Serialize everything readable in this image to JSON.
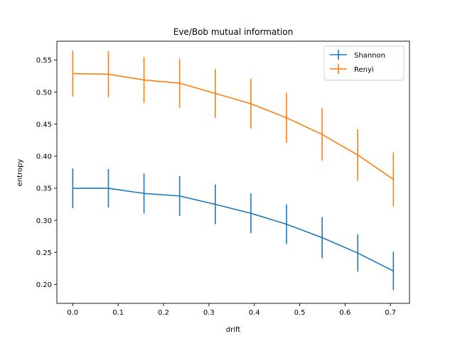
{
  "chart_data": {
    "type": "line",
    "title": "Eve/Bob mutual information",
    "xlabel": "drift",
    "ylabel": "entropy",
    "xlim": [
      -0.035,
      0.742
    ],
    "ylim": [
      0.1705,
      0.5795
    ],
    "xticks": [
      0.0,
      0.1,
      0.2,
      0.3,
      0.4,
      0.5,
      0.6,
      0.7
    ],
    "xtick_labels": [
      "0.0",
      "0.1",
      "0.2",
      "0.3",
      "0.4",
      "0.5",
      "0.6",
      "0.7"
    ],
    "yticks": [
      0.2,
      0.25,
      0.3,
      0.35,
      0.4,
      0.45,
      0.5,
      0.55
    ],
    "ytick_labels": [
      "0.20",
      "0.25",
      "0.30",
      "0.35",
      "0.40",
      "0.45",
      "0.50",
      "0.55"
    ],
    "x": [
      0.0,
      0.0785,
      0.157,
      0.2355,
      0.314,
      0.3925,
      0.471,
      0.5495,
      0.628,
      0.7065
    ],
    "grid": false,
    "legend_position": "top-right",
    "series": [
      {
        "name": "Shannon",
        "color": "#1f77b4",
        "values": [
          0.35,
          0.35,
          0.342,
          0.338,
          0.325,
          0.311,
          0.294,
          0.273,
          0.249,
          0.221
        ],
        "errors": [
          0.031,
          0.03,
          0.031,
          0.031,
          0.031,
          0.031,
          0.031,
          0.032,
          0.029,
          0.03
        ]
      },
      {
        "name": "Renyi",
        "color": "#ff7f0e",
        "values": [
          0.529,
          0.528,
          0.519,
          0.514,
          0.498,
          0.482,
          0.46,
          0.434,
          0.402,
          0.364
        ],
        "errors": [
          0.036,
          0.036,
          0.036,
          0.038,
          0.038,
          0.039,
          0.039,
          0.041,
          0.04,
          0.042
        ]
      }
    ]
  }
}
